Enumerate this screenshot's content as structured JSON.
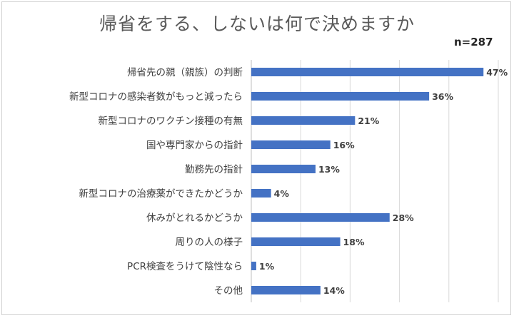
{
  "chart_data": {
    "type": "bar",
    "orientation": "horizontal",
    "title": "帰省をする、しないは何で決めますか",
    "annotation": "n=287",
    "categories": [
      "帰省先の親（親族）の判断",
      "新型コロナの感染者数がもっと減ったら",
      "新型コロナのワクチン接種の有無",
      "国や専門家からの指針",
      "勤務先の指針",
      "新型コロナの治療薬ができたかどうか",
      "休みがとれるかどうか",
      "周りの人の様子",
      "PCR検査をうけて陰性なら",
      "その他"
    ],
    "values": [
      47,
      36,
      21,
      16,
      13,
      4,
      28,
      18,
      1,
      14
    ],
    "value_suffix": "%",
    "xlim": [
      0,
      50
    ],
    "grid": true,
    "bar_color": "#4472c4"
  }
}
